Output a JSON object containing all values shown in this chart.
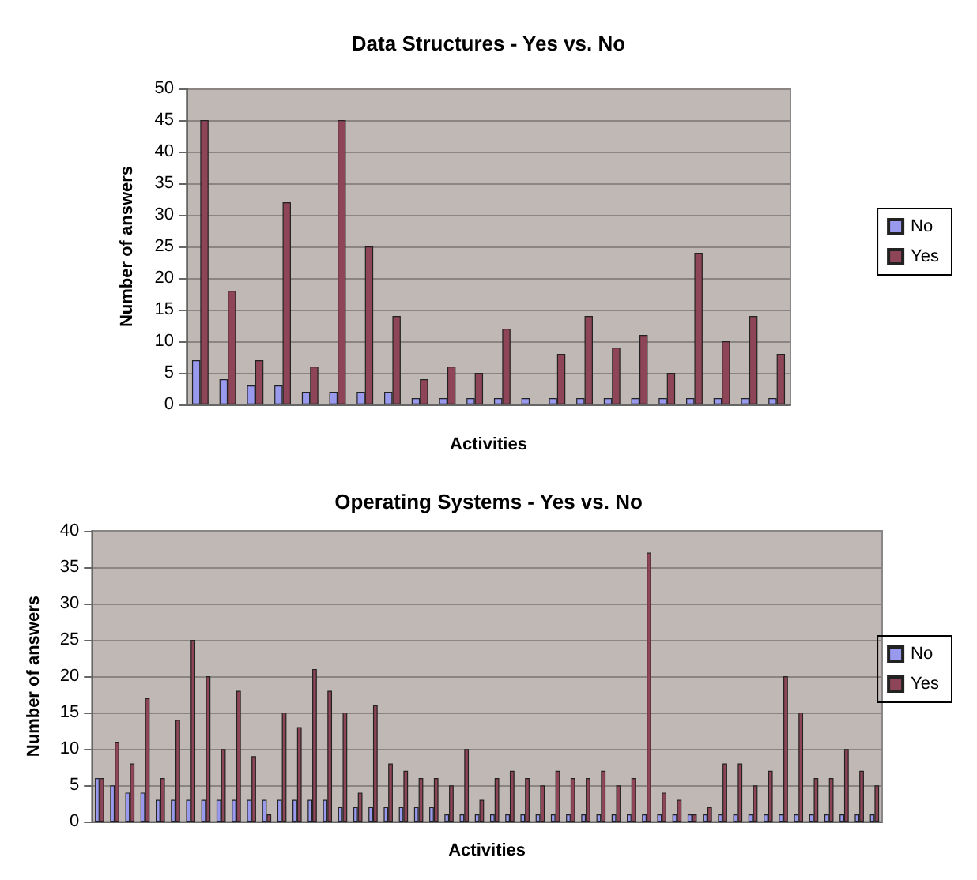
{
  "chart_data": [
    {
      "type": "bar",
      "title": "Data Structures - Yes vs. No",
      "xlabel": "Activities",
      "ylabel": "Number of answers",
      "categories": [
        null,
        null,
        null,
        null,
        null,
        null,
        null,
        null,
        null,
        null,
        null,
        null,
        null,
        null,
        null,
        null,
        null,
        null,
        null,
        null,
        null,
        null
      ],
      "series": [
        {
          "name": "No",
          "color": "#9999ee",
          "values": [
            7,
            4,
            3,
            3,
            2,
            2,
            2,
            2,
            1,
            1,
            1,
            1,
            1,
            1,
            1,
            1,
            1,
            1,
            1,
            1,
            1,
            1
          ]
        },
        {
          "name": "Yes",
          "color": "#8e4558",
          "values": [
            45,
            18,
            7,
            32,
            6,
            45,
            25,
            14,
            4,
            6,
            5,
            12,
            0,
            8,
            14,
            9,
            11,
            5,
            24,
            10,
            14,
            8
          ]
        }
      ],
      "ylim": [
        0,
        50
      ],
      "yticks": [
        0,
        5,
        10,
        15,
        20,
        25,
        30,
        35,
        40,
        45,
        50
      ],
      "grid": "y",
      "legend": "right"
    },
    {
      "type": "bar",
      "title": "Operating Systems - Yes vs. No",
      "xlabel": "Activities",
      "ylabel": "Number of answers",
      "categories": [
        null,
        null,
        null,
        null,
        null,
        null,
        null,
        null,
        null,
        null,
        null,
        null,
        null,
        null,
        null,
        null,
        null,
        null,
        null,
        null,
        null,
        null,
        null,
        null,
        null,
        null,
        null,
        null,
        null,
        null,
        null,
        null,
        null,
        null,
        null,
        null,
        null,
        null,
        null,
        null,
        null,
        null,
        null,
        null,
        null,
        null,
        null,
        null,
        null,
        null,
        null,
        null
      ],
      "series": [
        {
          "name": "No",
          "color": "#9999ee",
          "values": [
            6,
            5,
            4,
            4,
            3,
            3,
            3,
            3,
            3,
            3,
            3,
            3,
            3,
            3,
            3,
            3,
            2,
            2,
            2,
            2,
            2,
            2,
            2,
            1,
            1,
            1,
            1,
            1,
            1,
            1,
            1,
            1,
            1,
            1,
            1,
            1,
            1,
            1,
            1,
            1,
            1,
            1,
            1,
            1,
            1,
            1,
            1,
            1,
            1,
            1,
            1,
            1
          ]
        },
        {
          "name": "Yes",
          "color": "#8e4558",
          "values": [
            6,
            11,
            8,
            17,
            6,
            14,
            25,
            20,
            10,
            18,
            9,
            1,
            15,
            13,
            21,
            18,
            15,
            4,
            16,
            8,
            7,
            6,
            6,
            5,
            10,
            3,
            6,
            7,
            6,
            5,
            7,
            6,
            6,
            7,
            5,
            6,
            37,
            4,
            3,
            1,
            2,
            8,
            8,
            5,
            7,
            20,
            15,
            6,
            6,
            10,
            7,
            5
          ]
        }
      ],
      "ylim": [
        0,
        40
      ],
      "yticks": [
        0,
        5,
        10,
        15,
        20,
        25,
        30,
        35,
        40
      ],
      "grid": "y",
      "legend": "right"
    }
  ]
}
